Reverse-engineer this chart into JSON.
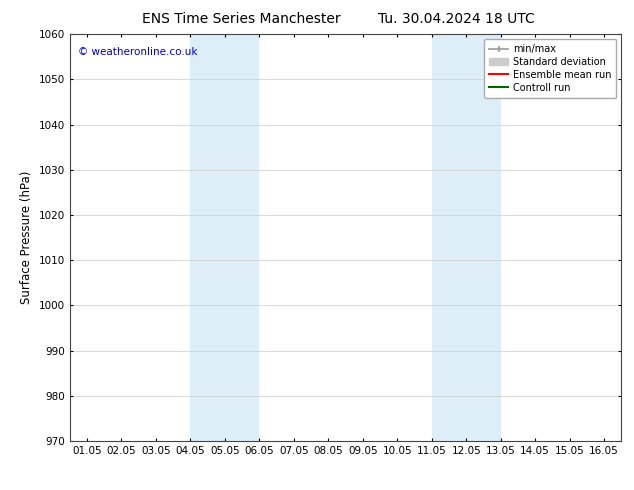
{
  "title_left": "ENS Time Series Manchester",
  "title_right": "Tu. 30.04.2024 18 UTC",
  "ylabel": "Surface Pressure (hPa)",
  "xlim": [
    0.5,
    16.5
  ],
  "ylim": [
    970,
    1060
  ],
  "yticks": [
    970,
    980,
    990,
    1000,
    1010,
    1020,
    1030,
    1040,
    1050,
    1060
  ],
  "xtick_labels": [
    "01.05",
    "02.05",
    "03.05",
    "04.05",
    "05.05",
    "06.05",
    "07.05",
    "08.05",
    "09.05",
    "10.05",
    "11.05",
    "12.05",
    "13.05",
    "14.05",
    "15.05",
    "16.05"
  ],
  "xtick_positions": [
    1.0,
    2.0,
    3.0,
    4.0,
    5.0,
    6.0,
    7.0,
    8.0,
    9.0,
    10.0,
    11.0,
    12.0,
    13.0,
    14.0,
    15.0,
    16.0
  ],
  "shaded_bands": [
    {
      "xmin": 4.0,
      "xmax": 6.0,
      "color": "#ddeef8"
    },
    {
      "xmin": 11.0,
      "xmax": 13.0,
      "color": "#ddeef8"
    }
  ],
  "copyright_text": "© weatheronline.co.uk",
  "copyright_color": "#0000cc",
  "legend_entries": [
    {
      "label": "min/max",
      "color": "#aaaaaa",
      "lw": 1.5
    },
    {
      "label": "Standard deviation",
      "color": "#cccccc",
      "lw": 6
    },
    {
      "label": "Ensemble mean run",
      "color": "#ff0000",
      "lw": 1.5
    },
    {
      "label": "Controll run",
      "color": "#006600",
      "lw": 1.5
    }
  ],
  "bg_color": "#ffffff",
  "grid_color": "#cccccc",
  "title_fontsize": 10,
  "tick_fontsize": 7.5,
  "ylabel_fontsize": 8.5,
  "copyright_fontsize": 7.5,
  "legend_fontsize": 7.0
}
